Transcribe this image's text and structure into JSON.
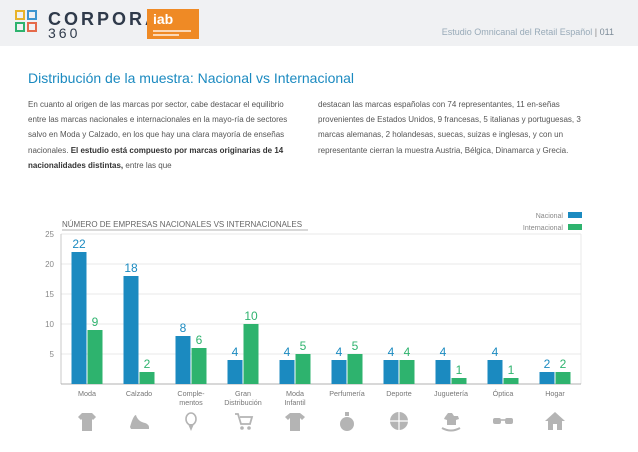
{
  "header": {
    "logo_line1": "CORPORA",
    "logo_line2": "360",
    "iab_logo": "iab",
    "report_title": "Estudio Omnicanal del Retail Español",
    "page_number": "011"
  },
  "section_title": "Distribución de la muestra: Nacional vs Internacional",
  "body_left": {
    "text": "En cuanto al origen de las marcas por sector, cabe destacar el equilibrio entre las marcas nacionales e internacionales en la mayo-ría de sectores salvo en Moda y Calzado, en los que hay una clara mayoría de enseñas nacionales. ",
    "bold": "El estudio está compuesto por marcas originarias de 14 nacionalidades distintas,",
    "tail": " entre las que"
  },
  "body_right": "destacan las marcas españolas con 74 representantes, 11 en-señas provenientes de Estados Unidos, 9 francesas, 5 italianas y portuguesas, 3 marcas alemanas, 2 holandesas, suecas, suizas e inglesas, y con un representante cierran la muestra Austria, Bélgica, Dinamarca y Grecia.",
  "chart_data": {
    "type": "bar",
    "title": "NÚMERO DE EMPRESAS NACIONALES VS INTERNACIONALES",
    "categories": [
      "Moda",
      "Calzado",
      "Comple-\nmentos",
      "Gran\nDistribución",
      "Moda\nInfantil",
      "Perfumería",
      "Deporte",
      "Juguetería",
      "Óptica",
      "Hogar"
    ],
    "series": [
      {
        "name": "Nacional",
        "color": "#1b8ac0",
        "values": [
          22,
          18,
          8,
          4,
          4,
          4,
          4,
          4,
          4,
          2
        ]
      },
      {
        "name": "Internacional",
        "color": "#2eb36e",
        "values": [
          9,
          2,
          6,
          10,
          5,
          5,
          4,
          1,
          1,
          2
        ]
      }
    ],
    "yticks": [
      5,
      10,
      15,
      20,
      25
    ],
    "ylim": [
      0,
      25
    ],
    "grid": true,
    "legend": "top-right"
  },
  "sector_icons": [
    "clothing-icon",
    "shoe-icon",
    "accessories-icon",
    "cart-icon",
    "baby-clothes-icon",
    "perfume-icon",
    "ball-icon",
    "rocking-horse-icon",
    "glasses-icon",
    "house-icon"
  ],
  "colors": {
    "accent": "#1b8ac0",
    "green": "#2eb36e",
    "icon": "#b4b4b4"
  }
}
